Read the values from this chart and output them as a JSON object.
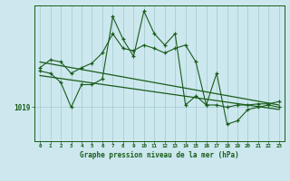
{
  "title": "Graphe pression niveau de la mer (hPa)",
  "background_color": "#cce8ee",
  "grid_color": "#a8cdd4",
  "line_color": "#1a5c1a",
  "xlim": [
    -0.5,
    23.5
  ],
  "ylim": [
    1016.0,
    1028.0
  ],
  "ytick_val": 1019,
  "x_ticks": [
    0,
    1,
    2,
    3,
    4,
    5,
    6,
    7,
    8,
    9,
    10,
    11,
    12,
    13,
    14,
    15,
    16,
    17,
    18,
    19,
    20,
    21,
    22,
    23
  ],
  "series1_x": [
    0,
    1,
    2,
    3,
    4,
    5,
    6,
    7,
    8,
    9,
    10,
    11,
    12,
    13,
    14,
    15,
    16,
    17,
    18,
    19,
    20,
    21,
    22,
    23
  ],
  "series1_y": [
    1022.5,
    1023.2,
    1023.0,
    1022.0,
    1022.5,
    1022.9,
    1023.8,
    1025.5,
    1024.2,
    1024.0,
    1024.5,
    1024.2,
    1023.8,
    1024.2,
    1024.5,
    1023.0,
    1019.2,
    1019.2,
    1019.0,
    1019.2,
    1019.2,
    1019.3,
    1019.3,
    1019.5
  ],
  "series2_x": [
    0,
    1,
    2,
    3,
    4,
    5,
    6,
    7,
    8,
    9,
    10,
    11,
    12,
    13,
    14,
    15,
    16,
    17,
    18,
    19,
    20,
    21,
    22,
    23
  ],
  "series2_y": [
    1022.2,
    1022.0,
    1021.2,
    1019.0,
    1021.0,
    1021.0,
    1021.5,
    1027.0,
    1025.0,
    1023.5,
    1027.5,
    1025.5,
    1024.5,
    1025.5,
    1019.2,
    1020.0,
    1019.2,
    1022.0,
    1017.5,
    1017.8,
    1018.8,
    1019.0,
    1019.2,
    1019.0
  ],
  "trend1_x": [
    0,
    23
  ],
  "trend1_y": [
    1023.0,
    1019.2
  ],
  "trend2_x": [
    0,
    23
  ],
  "trend2_y": [
    1021.8,
    1018.8
  ]
}
